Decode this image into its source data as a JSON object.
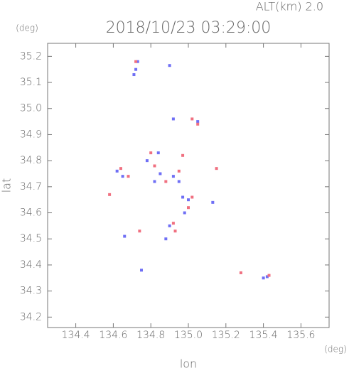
{
  "chart_data": {
    "type": "scatter",
    "title": "2018/10/23 03:29:00",
    "subtitle": "ALT(km) 2.0",
    "xlabel": "lon",
    "ylabel": "lat",
    "xunit": "(deg)",
    "yunit": "(deg)",
    "xlim": [
      134.25,
      135.75
    ],
    "ylim": [
      34.16,
      35.25
    ],
    "xticks": [
      134.4,
      134.6,
      134.8,
      {
        "value": 135.0,
        "label": "135.0"
      },
      135.2,
      135.4,
      135.6
    ],
    "yticks": [
      34.2,
      34.3,
      34.4,
      34.5,
      34.6,
      34.7,
      34.8,
      34.9,
      {
        "value": 35.0,
        "label": "35.0"
      },
      35.1,
      35.2
    ],
    "series": [
      {
        "color": "#6f6ff5",
        "x": [
          134.72,
          134.73,
          134.71,
          134.9,
          134.62,
          134.65,
          134.78,
          134.85,
          134.92,
          134.95,
          134.97,
          135.0,
          134.98,
          134.88,
          134.75,
          135.4,
          135.42,
          135.05,
          134.92,
          135.13,
          134.82,
          134.84,
          134.66,
          134.9
        ],
        "y": [
          35.15,
          35.18,
          35.13,
          35.165,
          34.76,
          34.74,
          34.8,
          34.75,
          34.74,
          34.72,
          34.66,
          34.65,
          34.6,
          34.5,
          34.38,
          34.35,
          34.355,
          34.95,
          34.96,
          34.64,
          34.72,
          34.83,
          34.51,
          34.55
        ]
      },
      {
        "color": "#f07080",
        "x": [
          134.72,
          134.68,
          134.64,
          134.82,
          134.95,
          135.02,
          135.05,
          135.0,
          134.93,
          134.92,
          135.28,
          135.43,
          134.8,
          134.97,
          134.88,
          135.02,
          134.58,
          134.74,
          135.15
        ],
        "y": [
          35.18,
          34.74,
          34.77,
          34.78,
          34.76,
          34.96,
          34.94,
          34.62,
          34.53,
          34.56,
          34.37,
          34.36,
          34.83,
          34.82,
          34.72,
          34.66,
          34.67,
          34.53,
          34.77
        ]
      }
    ]
  }
}
